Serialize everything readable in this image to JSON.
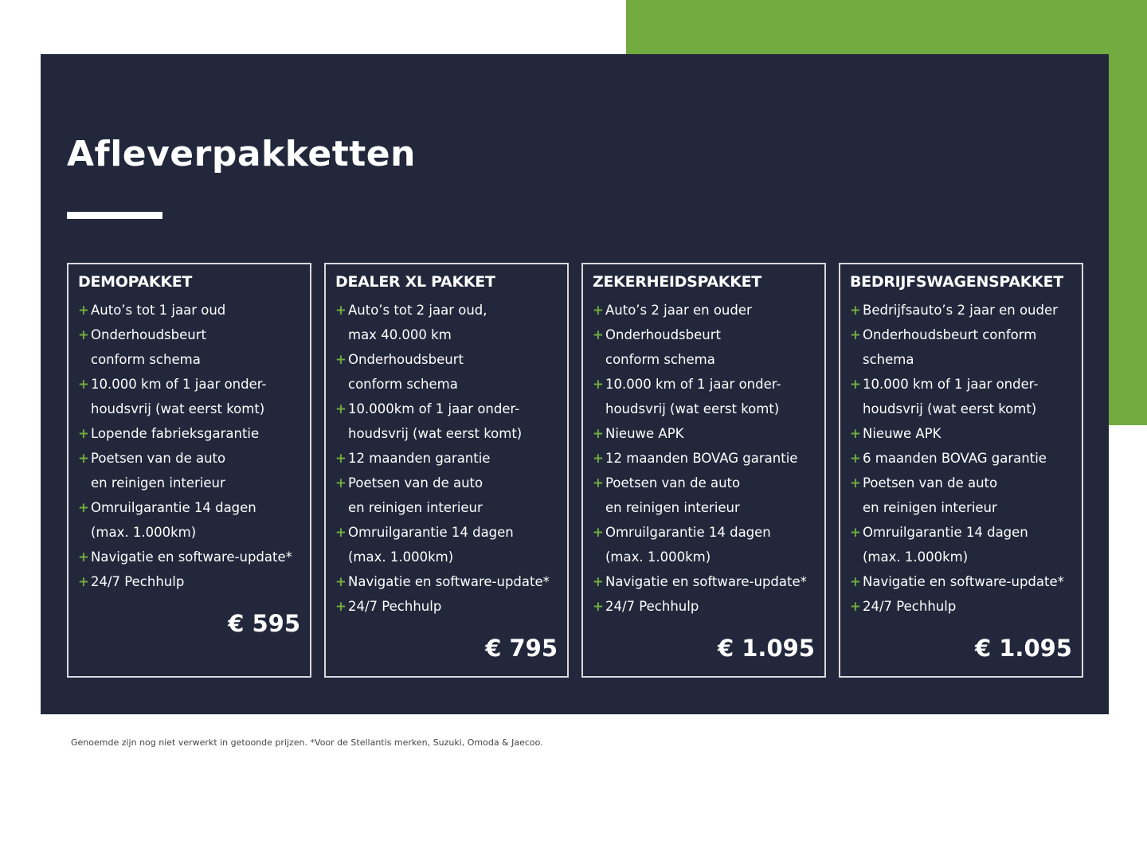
{
  "title": "Afleverpakketten",
  "colors": {
    "background": "#22273b",
    "accent": "#72ab3f"
  },
  "packages": [
    {
      "name": "DEMOPAKKET",
      "price": "€ 595",
      "items": [
        [
          "Auto’s tot 1 jaar oud"
        ],
        [
          "Onderhoudsbeurt",
          "conform schema"
        ],
        [
          "10.000 km of 1 jaar onder-",
          "houdsvrij (wat eerst komt)"
        ],
        [
          "Lopende fabrieksgarantie"
        ],
        [
          "Poetsen van de auto",
          "en reinigen interieur"
        ],
        [
          "Omruilgarantie 14 dagen",
          "(max. 1.000km)"
        ],
        [
          "Navigatie en software-update*"
        ],
        [
          "24/7 Pechhulp"
        ]
      ]
    },
    {
      "name": "DEALER XL PAKKET",
      "price": "€ 795",
      "items": [
        [
          "Auto’s tot 2 jaar oud,",
          "max 40.000 km"
        ],
        [
          "Onderhoudsbeurt",
          "conform schema"
        ],
        [
          "10.000km of 1 jaar onder-",
          "houdsvrij (wat eerst komt)"
        ],
        [
          "12 maanden garantie"
        ],
        [
          "Poetsen van de auto",
          "en reinigen interieur"
        ],
        [
          "Omruilgarantie 14 dagen",
          "(max. 1.000km)"
        ],
        [
          "Navigatie en software-update*"
        ],
        [
          "24/7 Pechhulp"
        ]
      ]
    },
    {
      "name": "ZEKERHEIDSPAKKET",
      "price": "€ 1.095",
      "items": [
        [
          "Auto’s 2 jaar en ouder"
        ],
        [
          "Onderhoudsbeurt",
          "conform schema"
        ],
        [
          "10.000 km of 1 jaar onder-",
          "houdsvrij (wat eerst komt)"
        ],
        [
          "Nieuwe APK"
        ],
        [
          "12 maanden BOVAG garantie"
        ],
        [
          "Poetsen van de auto",
          "en reinigen interieur"
        ],
        [
          "Omruilgarantie 14 dagen",
          "(max. 1.000km)"
        ],
        [
          "Navigatie en software-update*"
        ],
        [
          "24/7 Pechhulp"
        ]
      ]
    },
    {
      "name": "BEDRIJFSWAGENSPAKKET",
      "price": "€ 1.095",
      "items": [
        [
          "Bedrijfsauto’s 2 jaar en ouder"
        ],
        [
          "Onderhoudsbeurt conform",
          "schema"
        ],
        [
          "10.000 km of 1 jaar onder-",
          "houdsvrij (wat eerst komt)"
        ],
        [
          "Nieuwe APK"
        ],
        [
          "6 maanden BOVAG garantie"
        ],
        [
          "Poetsen van de auto",
          "en reinigen interieur"
        ],
        [
          "Omruilgarantie 14 dagen",
          "(max. 1.000km)"
        ],
        [
          "Navigatie en software-update*"
        ],
        [
          "24/7 Pechhulp"
        ]
      ]
    }
  ],
  "footnote": "Genoemde zijn nog niet verwerkt in getoonde prijzen. *Voor de Stellantis merken, Suzuki, Omoda & Jaecoo."
}
